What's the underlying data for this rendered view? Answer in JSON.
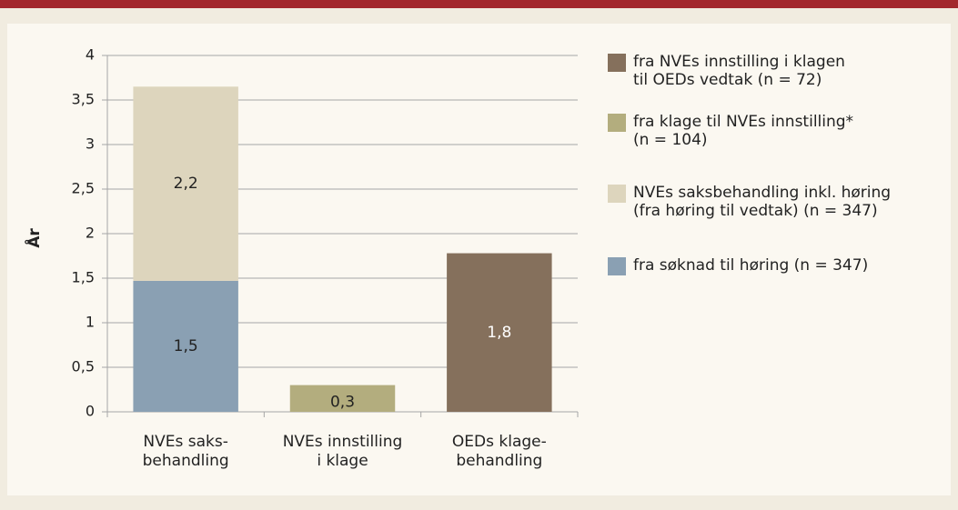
{
  "chart_data": {
    "type": "stacked_bar",
    "y_label": "År",
    "categories": [
      "NVEs saks-\nbehandling",
      "NVEs innstilling\ni klage",
      "OEDs klage-\nbehandling"
    ],
    "series": [
      {
        "name": "fra NVEs innstilling i klagen\ntil OEDs vedtak (n = 72)",
        "color": "#85705c",
        "values": [
          null,
          null,
          1.78
        ],
        "value_labels": [
          null,
          null,
          "1,8"
        ]
      },
      {
        "name": "fra klage til NVEs innstilling*\n(n = 104)",
        "color": "#b3ad7e",
        "values": [
          null,
          0.3,
          null
        ],
        "value_labels": [
          null,
          "0,3",
          null
        ]
      },
      {
        "name": "NVEs saksbehandling inkl. høring\n(fra høring til vedtak) (n = 347)",
        "color": "#ddd5bd",
        "values": [
          2.18,
          null,
          null
        ],
        "value_labels": [
          "2,2",
          null,
          null
        ]
      },
      {
        "name": "fra søknad til høring (n = 347)",
        "color": "#8aa0b3",
        "values": [
          1.47,
          null,
          null
        ],
        "value_labels": [
          "1,5",
          null,
          null
        ]
      }
    ],
    "ylim": [
      0,
      4
    ],
    "yticks": [
      0,
      {
        "value": 0.5,
        "label": "0,5"
      },
      1,
      {
        "value": 1.5,
        "label": "1,5"
      },
      2,
      {
        "value": 2.5,
        "label": "2,5"
      },
      3,
      {
        "value": 3.5,
        "label": "3,5"
      },
      4
    ],
    "grid": true,
    "legend": "right"
  }
}
